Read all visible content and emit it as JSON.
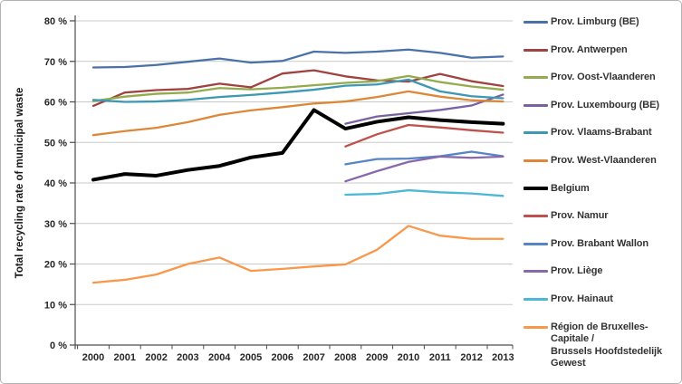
{
  "chart_data": {
    "type": "line",
    "title": "",
    "xlabel": "",
    "ylabel": "Total recycling rate of municipal waste",
    "ylim": [
      0,
      80
    ],
    "grid": true,
    "legend_position": "right",
    "x_labels": [
      "2000",
      "2001",
      "2002",
      "2003",
      "2004",
      "2005",
      "2006",
      "2007",
      "2008",
      "2009",
      "2010",
      "2011",
      "2012",
      "2013"
    ],
    "y_tick_labels": [
      "0 %",
      "10 %",
      "20 %",
      "30 %",
      "40 %",
      "50 %",
      "60 %",
      "70 %",
      "80 %"
    ],
    "y_tick_values": [
      0,
      10,
      20,
      30,
      40,
      50,
      60,
      70,
      80
    ],
    "series": [
      {
        "key": "prov-limburg-be",
        "name": "Prov. Limburg (BE)",
        "color": "#4A72A8",
        "emphasis": false,
        "values": [
          68.5,
          68.6,
          69.1,
          69.9,
          70.7,
          69.7,
          70.1,
          72.4,
          72.1,
          72.4,
          72.9,
          72.1,
          70.9,
          71.2
        ]
      },
      {
        "key": "prov-antwerpen",
        "name": "Prov. Antwerpen",
        "color": "#A04240",
        "emphasis": false,
        "values": [
          59.0,
          62.3,
          62.9,
          63.2,
          64.5,
          63.6,
          67.0,
          67.8,
          66.3,
          65.3,
          65.0,
          66.9,
          65.1,
          63.9
        ]
      },
      {
        "key": "prov-oost-vlaanderen",
        "name": "Prov. Oost-Vlaanderen",
        "color": "#93AB4D",
        "emphasis": false,
        "values": [
          60.2,
          61.3,
          62.0,
          62.3,
          63.4,
          63.1,
          63.5,
          64.1,
          64.7,
          65.1,
          66.4,
          64.9,
          63.8,
          63.0
        ]
      },
      {
        "key": "prov-luxembourg-be",
        "name": "Prov. Luxembourg (BE)",
        "color": "#7A61A2",
        "emphasis": false,
        "values": [
          null,
          null,
          null,
          null,
          null,
          null,
          null,
          null,
          54.6,
          56.4,
          57.2,
          58.0,
          59.1,
          61.8
        ]
      },
      {
        "key": "prov-vlaams-brabant",
        "name": "Prov. Vlaams-Brabant",
        "color": "#3D98B4",
        "emphasis": false,
        "values": [
          60.5,
          60.0,
          60.1,
          60.5,
          61.2,
          61.7,
          62.3,
          63.0,
          64.0,
          64.3,
          65.5,
          62.6,
          61.4,
          60.9
        ]
      },
      {
        "key": "prov-west-vlaanderen",
        "name": "Prov. West-Vlaanderen",
        "color": "#DD8839",
        "emphasis": false,
        "values": [
          51.8,
          52.8,
          53.6,
          55.0,
          56.8,
          57.9,
          58.7,
          59.6,
          60.1,
          61.2,
          62.6,
          61.3,
          60.4,
          60.1
        ]
      },
      {
        "key": "belgium",
        "name": "Belgium",
        "color": "#000000",
        "emphasis": true,
        "values": [
          40.8,
          42.2,
          41.8,
          43.2,
          44.2,
          46.3,
          47.4,
          58.0,
          53.4,
          55.1,
          56.2,
          55.5,
          55.0,
          54.6
        ]
      },
      {
        "key": "prov-namur",
        "name": "Prov. Namur",
        "color": "#C0504D",
        "emphasis": false,
        "values": [
          null,
          null,
          null,
          null,
          null,
          null,
          null,
          null,
          49.0,
          52.0,
          54.3,
          53.7,
          53.0,
          52.4
        ]
      },
      {
        "key": "prov-brabant-wallon",
        "name": "Prov. Brabant Wallon",
        "color": "#5585C5",
        "emphasis": false,
        "values": [
          null,
          null,
          null,
          null,
          null,
          null,
          null,
          null,
          44.6,
          45.9,
          46.0,
          46.6,
          47.7,
          46.6
        ]
      },
      {
        "key": "prov-liege",
        "name": "Prov. Liège",
        "color": "#8769AB",
        "emphasis": false,
        "values": [
          null,
          null,
          null,
          null,
          null,
          null,
          null,
          null,
          40.4,
          42.9,
          45.2,
          46.5,
          46.2,
          46.5
        ]
      },
      {
        "key": "prov-hainaut",
        "name": "Prov. Hainaut",
        "color": "#4DB7D6",
        "emphasis": false,
        "values": [
          null,
          null,
          null,
          null,
          null,
          null,
          null,
          null,
          37.1,
          37.3,
          38.2,
          37.7,
          37.4,
          36.8
        ]
      },
      {
        "key": "region-bruxelles-brussels",
        "name": "Région de Bruxelles-Capitale / Brussels Hoofdstedelijk Gewest",
        "color": "#F9984B",
        "emphasis": false,
        "values": [
          15.4,
          16.1,
          17.4,
          20.0,
          21.6,
          18.3,
          18.8,
          19.4,
          19.9,
          23.5,
          29.4,
          27.0,
          26.2,
          26.2
        ]
      }
    ]
  },
  "colors": {
    "gridline": "#C9C9C9",
    "axis": "#4D4D4D",
    "tick_text": "#262626",
    "figure_border": "#B3B3B3",
    "background": "#FFFFFF"
  }
}
